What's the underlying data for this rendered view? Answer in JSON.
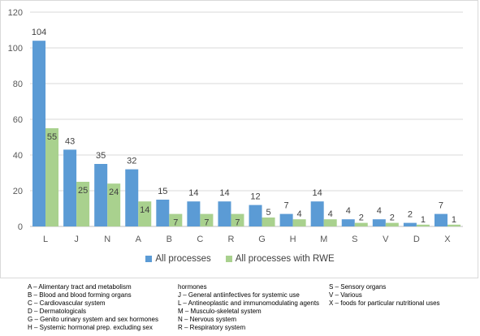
{
  "chart_data": {
    "type": "bar",
    "categories": [
      "L",
      "J",
      "N",
      "A",
      "B",
      "C",
      "R",
      "G",
      "H",
      "M",
      "S",
      "V",
      "D",
      "X"
    ],
    "series": [
      {
        "name": "All processes",
        "color": "#5b9bd5",
        "values": [
          104,
          43,
          35,
          32,
          15,
          14,
          14,
          12,
          7,
          14,
          4,
          4,
          2,
          7
        ]
      },
      {
        "name": "All processes with RWE",
        "color": "#a9d18e",
        "values": [
          55,
          25,
          24,
          14,
          7,
          7,
          7,
          5,
          4,
          4,
          2,
          2,
          1,
          1
        ]
      }
    ],
    "y_ticks": [
      0,
      20,
      40,
      60,
      80,
      100,
      120
    ],
    "ylim": [
      0,
      120
    ],
    "grid": true,
    "legend_position": "bottom"
  },
  "codes": {
    "col1": [
      "A – Alimentary tract and metabolism",
      "B – Blood and blood forming organs",
      "C – Cardiovascular system",
      "D – Dermatologicals",
      "G – Genito urinary system and sex hormones",
      "H – Systemic hormonal prep. excluding sex"
    ],
    "col2": [
      "hormones",
      "J – General antiinfectives for systemic use",
      "L – Antineoplastic and immunomodulating agents",
      "M – Musculo-skeletal system",
      "N – Nervous system",
      "R – Respiratory system"
    ],
    "col3": [
      "S – Sensory organs",
      "V – Various",
      "X – foods for particular nutritional uses"
    ]
  }
}
